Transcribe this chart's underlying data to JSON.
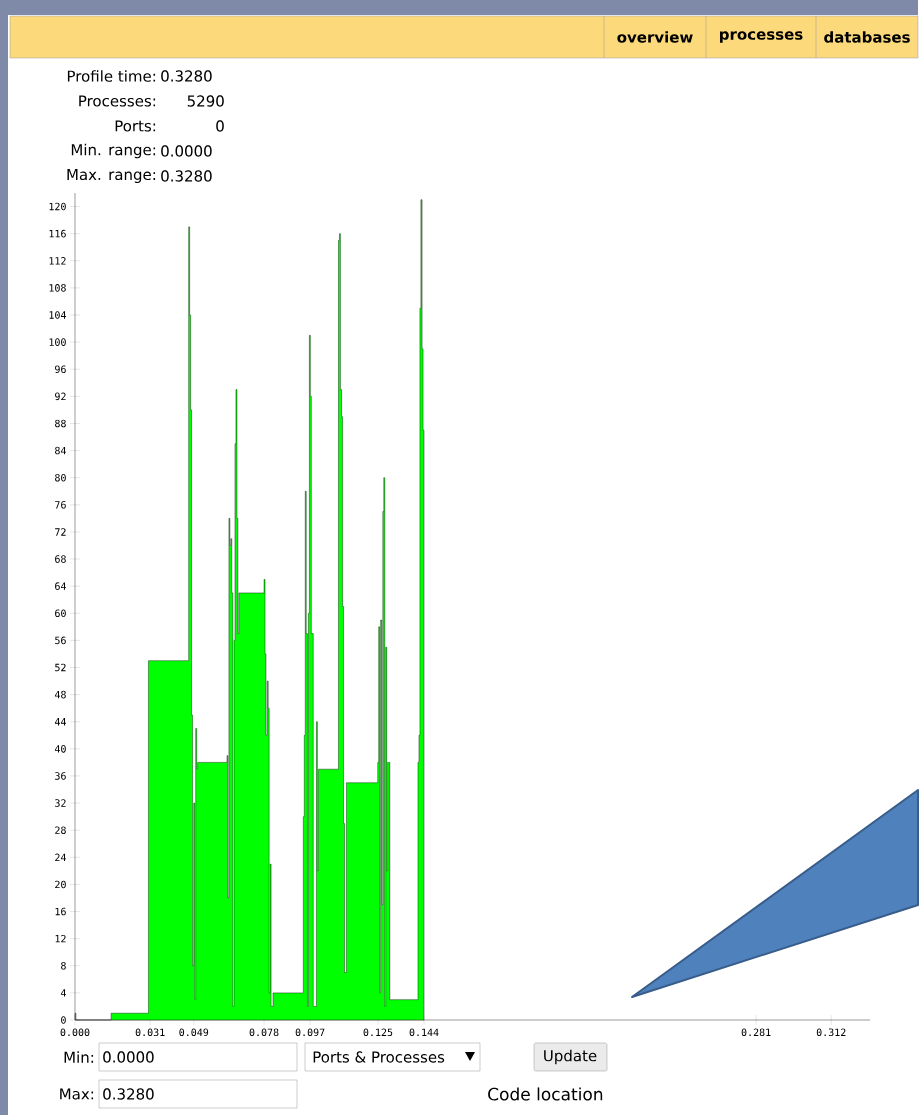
{
  "chart_data": {
    "type": "area",
    "x": [
      0,
      0.0004,
      0.0149,
      0.0303,
      0.0469,
      0.0473,
      0.0477,
      0.0481,
      0.0485,
      0.049,
      0.0494,
      0.0498,
      0.0502,
      0.0506,
      0.0627,
      0.0631,
      0.0635,
      0.0639,
      0.0643,
      0.0647,
      0.0651,
      0.0656,
      0.066,
      0.0664,
      0.0668,
      0.0672,
      0.0676,
      0.078,
      0.0784,
      0.0788,
      0.0793,
      0.0797,
      0.0801,
      0.0805,
      0.0809,
      0.0817,
      0.0942,
      0.0946,
      0.095,
      0.0954,
      0.0959,
      0.0963,
      0.0967,
      0.0971,
      0.0975,
      0.0983,
      0.0996,
      0.1,
      0.1004,
      0.1087,
      0.1091,
      0.1095,
      0.11,
      0.1104,
      0.1108,
      0.1112,
      0.112,
      0.1249,
      0.1253,
      0.1257,
      0.1261,
      0.1266,
      0.127,
      0.1274,
      0.1278,
      0.1282,
      0.1286,
      0.129,
      0.1299,
      0.1415,
      0.1419,
      0.1423,
      0.1427,
      0.1432,
      0.1436,
      0.144
    ],
    "series": [
      {
        "color": "#00ff00",
        "values": [
          1,
          0,
          1,
          53,
          117,
          104,
          90,
          45,
          8,
          32,
          3,
          43,
          37,
          38,
          39,
          18,
          74,
          70,
          71,
          63,
          2,
          56,
          85,
          93,
          74,
          57,
          63,
          65,
          54,
          42,
          50,
          46,
          4,
          23,
          2,
          4,
          30,
          42,
          78,
          57,
          2,
          60,
          101,
          92,
          57,
          2,
          44,
          22,
          37,
          115,
          116,
          93,
          89,
          61,
          29,
          7,
          35,
          38,
          58,
          4,
          59,
          17,
          75,
          80,
          2,
          55,
          22,
          38,
          3,
          38,
          42,
          105,
          121,
          99,
          87,
          0
        ]
      }
    ],
    "xlim": [
      0,
      0.328
    ],
    "ylim": [
      0,
      122
    ],
    "xticks": [
      {
        "value": 0,
        "label": "0.000"
      },
      0.031,
      0.049,
      0.078,
      0.097,
      0.125,
      0.144,
      0.281,
      0.312
    ],
    "yticks": [
      0,
      4,
      8,
      12,
      16,
      20,
      24,
      28,
      32,
      36,
      40,
      44,
      48,
      52,
      56,
      60,
      64,
      68,
      72,
      76,
      80,
      84,
      88,
      92,
      96,
      100,
      104,
      108,
      112,
      116,
      120
    ],
    "annotations": [
      "overview",
      "processes",
      "databases",
      "Profile time:",
      "0.3280",
      "Processes:",
      "5290",
      "Ports:",
      "0",
      "Min. range:",
      "0.0000",
      "Max. range:",
      "0.3280",
      "Min:",
      "0.0000",
      "Ports & Processes",
      "Update",
      "Max:",
      "0.3280",
      "Code location"
    ]
  }
}
